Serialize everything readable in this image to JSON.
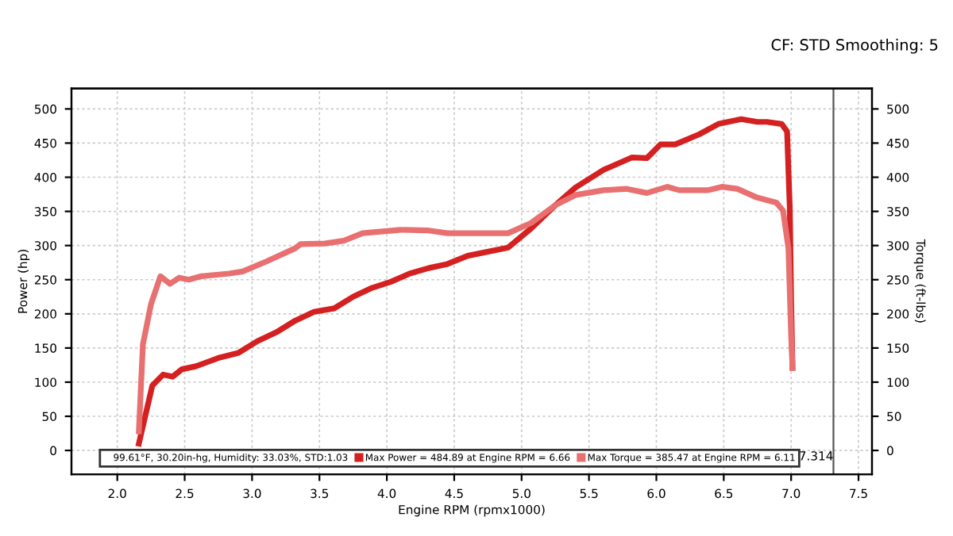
{
  "chart_data": {
    "type": "line",
    "subtitle": "CF: STD Smoothing: 5",
    "xlabel": "Engine RPM (rpmx1000)",
    "ylabel": "Power (hp)",
    "y2label": "Torque (ft-lbs)",
    "annotations": [
      "99.61°F, 30.20in-hg, Humidity: 33.03%, STD:1.03"
    ],
    "series": [
      {
        "name": "Max Power = 484.89 at Engine RPM = 6.66",
        "color": "#d42020",
        "axis": "y",
        "x": [
          2.16,
          2.26,
          2.34,
          2.41,
          2.48,
          2.58,
          2.76,
          2.9,
          3.04,
          3.18,
          3.32,
          3.46,
          3.61,
          3.75,
          3.89,
          4.03,
          4.17,
          4.31,
          4.45,
          4.6,
          4.9,
          5.07,
          5.25,
          5.4,
          5.61,
          5.82,
          5.93,
          6.03,
          6.14,
          6.32,
          6.46,
          6.63,
          6.75,
          6.82,
          6.93,
          6.97,
          6.99,
          7.0,
          7.01
        ],
        "values": [
          10,
          95,
          111,
          108,
          119,
          123,
          136,
          143,
          160,
          173,
          190,
          203,
          208,
          225,
          238,
          247,
          259,
          267,
          273,
          285,
          297,
          325,
          359,
          385,
          411,
          429,
          428,
          448,
          448,
          463,
          478,
          485,
          481,
          481,
          478,
          467,
          355,
          221,
          121
        ]
      },
      {
        "name": "Max Torque = 385.47 at Engine RPM = 6.11",
        "color": "#e87070",
        "axis": "y2",
        "x": [
          2.16,
          2.19,
          2.25,
          2.32,
          2.39,
          2.46,
          2.53,
          2.62,
          2.83,
          2.93,
          3.11,
          3.32,
          3.36,
          3.54,
          3.68,
          3.82,
          4.1,
          4.31,
          4.45,
          4.6,
          4.9,
          5.07,
          5.25,
          5.4,
          5.61,
          5.78,
          5.93,
          6.08,
          6.17,
          6.38,
          6.49,
          6.6,
          6.75,
          6.89,
          6.94,
          6.98,
          7.0,
          7.01
        ],
        "values": [
          28,
          155,
          214,
          255,
          244,
          253,
          250,
          255,
          259,
          262,
          277,
          296,
          302,
          303,
          307,
          318,
          323,
          322,
          318,
          318,
          318,
          333,
          359,
          374,
          381,
          383,
          377,
          386,
          381,
          381,
          386,
          383,
          370,
          363,
          351,
          296,
          169,
          121
        ]
      }
    ],
    "xlim": [
      1.66,
      7.6
    ],
    "xticks": [
      {
        "value": 2,
        "label": "2.0"
      },
      {
        "value": 2.5,
        "label": "2.5"
      },
      {
        "value": 3,
        "label": "3.0"
      },
      {
        "value": 3.5,
        "label": "3.5"
      },
      {
        "value": 4,
        "label": "4.0"
      },
      {
        "value": 4.5,
        "label": "4.5"
      },
      {
        "value": 5,
        "label": "5.0"
      },
      {
        "value": 5.5,
        "label": "5.5"
      },
      {
        "value": 6,
        "label": "6.0"
      },
      {
        "value": 6.5,
        "label": "6.5"
      },
      {
        "value": 7,
        "label": "7.0"
      },
      {
        "value": 7.5,
        "label": "7.5"
      }
    ],
    "ylim": [
      -35,
      530
    ],
    "yticks": [
      0,
      50,
      100,
      150,
      200,
      250,
      300,
      350,
      400,
      450,
      500
    ],
    "y2lim": [
      -35,
      530
    ],
    "y2ticks": [
      0,
      50,
      100,
      150,
      200,
      250,
      300,
      350,
      400,
      450,
      500
    ],
    "ref_lines": [
      {
        "axis": "x",
        "value": 7.314,
        "label": "7.314",
        "color": "#555555"
      }
    ],
    "grid": true,
    "legend": "bottom",
    "marker": "none",
    "line_style": "solid"
  }
}
